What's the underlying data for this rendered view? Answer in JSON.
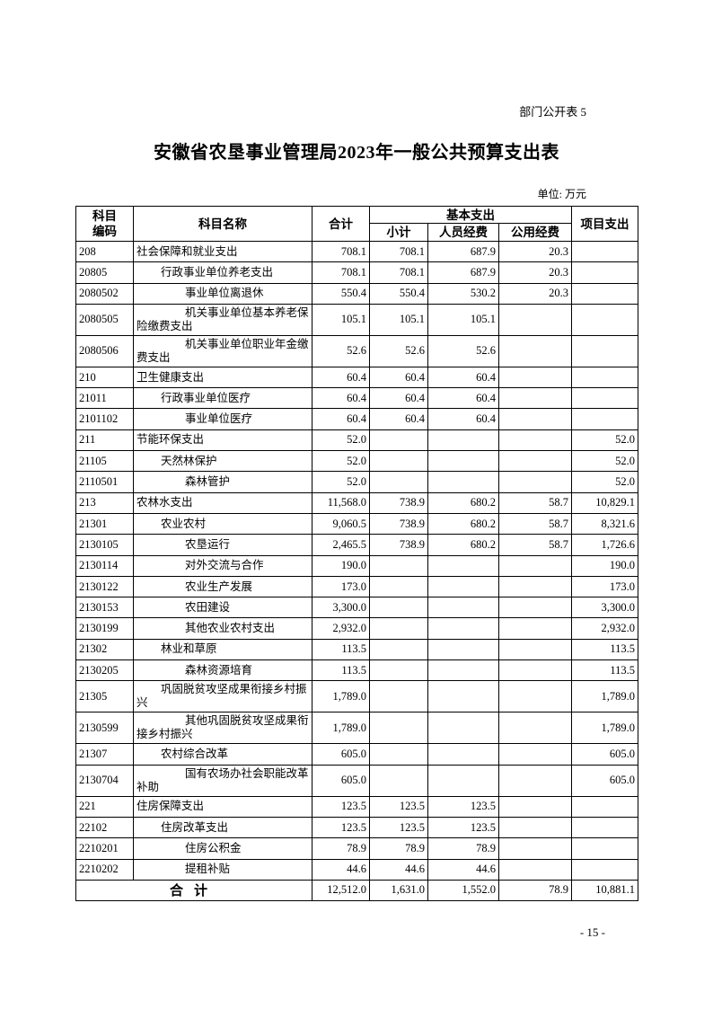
{
  "tag": "部门公开表 5",
  "title": "安徽省农垦事业管理局2023年一般公共预算支出表",
  "unit": "单位: 万元",
  "headers": {
    "code": "科目编码",
    "name": "科目名称",
    "total": "合计",
    "basic": "基本支出",
    "subtotal": "小计",
    "personnel": "人员经费",
    "public": "公用经费",
    "project": "项目支出"
  },
  "rows": [
    {
      "code": "208",
      "name": "社会保障和就业支出",
      "level": 0,
      "total": "708.1",
      "subtotal": "708.1",
      "personnel": "687.9",
      "public": "20.3",
      "project": ""
    },
    {
      "code": "20805",
      "name": "行政事业单位养老支出",
      "level": 1,
      "total": "708.1",
      "subtotal": "708.1",
      "personnel": "687.9",
      "public": "20.3",
      "project": ""
    },
    {
      "code": "2080502",
      "name": "事业单位离退休",
      "level": 2,
      "total": "550.4",
      "subtotal": "550.4",
      "personnel": "530.2",
      "public": "20.3",
      "project": ""
    },
    {
      "code": "2080505",
      "name": "机关事业单位基本养老保险缴费支出",
      "level": 2,
      "total": "105.1",
      "subtotal": "105.1",
      "personnel": "105.1",
      "public": "",
      "project": ""
    },
    {
      "code": "2080506",
      "name": "机关事业单位职业年金缴费支出",
      "level": 2,
      "total": "52.6",
      "subtotal": "52.6",
      "personnel": "52.6",
      "public": "",
      "project": ""
    },
    {
      "code": "210",
      "name": "卫生健康支出",
      "level": 0,
      "total": "60.4",
      "subtotal": "60.4",
      "personnel": "60.4",
      "public": "",
      "project": ""
    },
    {
      "code": "21011",
      "name": "行政事业单位医疗",
      "level": 1,
      "total": "60.4",
      "subtotal": "60.4",
      "personnel": "60.4",
      "public": "",
      "project": ""
    },
    {
      "code": "2101102",
      "name": "事业单位医疗",
      "level": 2,
      "total": "60.4",
      "subtotal": "60.4",
      "personnel": "60.4",
      "public": "",
      "project": ""
    },
    {
      "code": "211",
      "name": "节能环保支出",
      "level": 0,
      "total": "52.0",
      "subtotal": "",
      "personnel": "",
      "public": "",
      "project": "52.0"
    },
    {
      "code": "21105",
      "name": "天然林保护",
      "level": 1,
      "total": "52.0",
      "subtotal": "",
      "personnel": "",
      "public": "",
      "project": "52.0"
    },
    {
      "code": "2110501",
      "name": "森林管护",
      "level": 2,
      "total": "52.0",
      "subtotal": "",
      "personnel": "",
      "public": "",
      "project": "52.0"
    },
    {
      "code": "213",
      "name": "农林水支出",
      "level": 0,
      "total": "11,568.0",
      "subtotal": "738.9",
      "personnel": "680.2",
      "public": "58.7",
      "project": "10,829.1"
    },
    {
      "code": "21301",
      "name": "农业农村",
      "level": 1,
      "total": "9,060.5",
      "subtotal": "738.9",
      "personnel": "680.2",
      "public": "58.7",
      "project": "8,321.6"
    },
    {
      "code": "2130105",
      "name": "农垦运行",
      "level": 2,
      "total": "2,465.5",
      "subtotal": "738.9",
      "personnel": "680.2",
      "public": "58.7",
      "project": "1,726.6"
    },
    {
      "code": "2130114",
      "name": "对外交流与合作",
      "level": 2,
      "total": "190.0",
      "subtotal": "",
      "personnel": "",
      "public": "",
      "project": "190.0"
    },
    {
      "code": "2130122",
      "name": "农业生产发展",
      "level": 2,
      "total": "173.0",
      "subtotal": "",
      "personnel": "",
      "public": "",
      "project": "173.0"
    },
    {
      "code": "2130153",
      "name": "农田建设",
      "level": 2,
      "total": "3,300.0",
      "subtotal": "",
      "personnel": "",
      "public": "",
      "project": "3,300.0"
    },
    {
      "code": "2130199",
      "name": "其他农业农村支出",
      "level": 2,
      "total": "2,932.0",
      "subtotal": "",
      "personnel": "",
      "public": "",
      "project": "2,932.0"
    },
    {
      "code": "21302",
      "name": "林业和草原",
      "level": 1,
      "total": "113.5",
      "subtotal": "",
      "personnel": "",
      "public": "",
      "project": "113.5"
    },
    {
      "code": "2130205",
      "name": "森林资源培育",
      "level": 2,
      "total": "113.5",
      "subtotal": "",
      "personnel": "",
      "public": "",
      "project": "113.5"
    },
    {
      "code": "21305",
      "name": "巩固脱贫攻坚成果衔接乡村振兴",
      "level": 1,
      "total": "1,789.0",
      "subtotal": "",
      "personnel": "",
      "public": "",
      "project": "1,789.0"
    },
    {
      "code": "2130599",
      "name": "其他巩固脱贫攻坚成果衔接乡村振兴",
      "level": 2,
      "total": "1,789.0",
      "subtotal": "",
      "personnel": "",
      "public": "",
      "project": "1,789.0"
    },
    {
      "code": "21307",
      "name": "农村综合改革",
      "level": 1,
      "total": "605.0",
      "subtotal": "",
      "personnel": "",
      "public": "",
      "project": "605.0"
    },
    {
      "code": "2130704",
      "name": "国有农场办社会职能改革补助",
      "level": 2,
      "total": "605.0",
      "subtotal": "",
      "personnel": "",
      "public": "",
      "project": "605.0"
    },
    {
      "code": "221",
      "name": "住房保障支出",
      "level": 0,
      "total": "123.5",
      "subtotal": "123.5",
      "personnel": "123.5",
      "public": "",
      "project": ""
    },
    {
      "code": "22102",
      "name": "住房改革支出",
      "level": 1,
      "total": "123.5",
      "subtotal": "123.5",
      "personnel": "123.5",
      "public": "",
      "project": ""
    },
    {
      "code": "2210201",
      "name": "住房公积金",
      "level": 2,
      "total": "78.9",
      "subtotal": "78.9",
      "personnel": "78.9",
      "public": "",
      "project": ""
    },
    {
      "code": "2210202",
      "name": "提租补贴",
      "level": 2,
      "total": "44.6",
      "subtotal": "44.6",
      "personnel": "44.6",
      "public": "",
      "project": ""
    }
  ],
  "total_row": {
    "label": "合计",
    "total": "12,512.0",
    "subtotal": "1,631.0",
    "personnel": "1,552.0",
    "public": "78.9",
    "project": "10,881.1"
  },
  "page_number": "- 15 -"
}
